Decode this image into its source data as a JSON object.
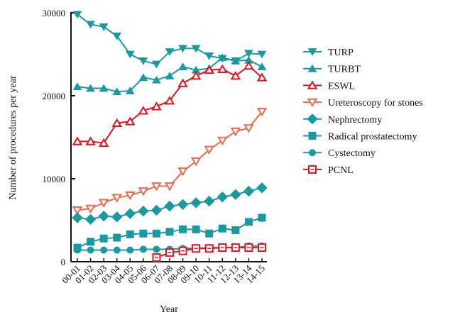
{
  "chart_data": {
    "type": "line",
    "title": "",
    "xlabel": "Year",
    "ylabel": "Number of procedures per year",
    "ylim": [
      0,
      30000
    ],
    "yticks": [
      0,
      10000,
      20000,
      30000
    ],
    "ytick_labels": [
      "0",
      "10000",
      "20000",
      "30000"
    ],
    "grid": false,
    "legend_position": "right",
    "categories": [
      "00-01",
      "01-02",
      "02-03",
      "03-04",
      "04-05",
      "05-06",
      "06-07",
      "07-08",
      "08-09",
      "09-10",
      "10-11",
      "11-12",
      "12-13",
      "13-14",
      "14-15"
    ],
    "series": [
      {
        "name": "TURP",
        "color": "#1a9aa0",
        "marker": "triangle-down-filled",
        "values": [
          29800,
          28600,
          28300,
          27200,
          25000,
          24200,
          23800,
          25300,
          25700,
          25700,
          24800,
          24500,
          24200,
          25100,
          25000
        ]
      },
      {
        "name": "TURBT",
        "color": "#1a9aa0",
        "marker": "triangle-up-filled",
        "values": [
          21100,
          20900,
          20900,
          20500,
          20600,
          22200,
          21900,
          22400,
          23500,
          23100,
          23300,
          24600,
          24200,
          24300,
          23500
        ]
      },
      {
        "name": "ESWL",
        "color": "#e8101c",
        "marker": "triangle-up-open",
        "values": [
          14500,
          14500,
          14300,
          16700,
          16900,
          18200,
          18700,
          19400,
          21500,
          22400,
          23100,
          23200,
          22400,
          23600,
          22200
        ]
      },
      {
        "name": "Ureteroscopy for stones",
        "color": "#f0684a",
        "marker": "triangle-down-open",
        "values": [
          6200,
          6400,
          7100,
          7700,
          8000,
          8500,
          9100,
          9100,
          10900,
          12100,
          13500,
          14600,
          15700,
          16100,
          18100
        ]
      },
      {
        "name": "Nephrectomy",
        "color": "#1a9aa0",
        "marker": "diamond-filled",
        "values": [
          5300,
          5100,
          5500,
          5400,
          5800,
          6100,
          6200,
          6700,
          6900,
          7100,
          7300,
          7800,
          8100,
          8500,
          8900
        ]
      },
      {
        "name": "Radical prostatectomy",
        "color": "#1a9aa0",
        "marker": "square-filled",
        "values": [
          1700,
          2400,
          2800,
          2900,
          3300,
          3400,
          3400,
          3600,
          3900,
          3900,
          3400,
          4000,
          3800,
          4800,
          5300
        ]
      },
      {
        "name": "Cystectomy",
        "color": "#1a9aa0",
        "marker": "circle-filled",
        "values": [
          1400,
          1400,
          1400,
          1400,
          1400,
          1500,
          1500,
          1500,
          1600,
          1600,
          1700,
          1700,
          1700,
          1900,
          1900
        ]
      },
      {
        "name": "PCNL",
        "color": "#e8101c",
        "marker": "square-open",
        "values": [
          null,
          null,
          null,
          null,
          null,
          null,
          500,
          1100,
          1300,
          1600,
          1600,
          1700,
          1700,
          1700,
          1700
        ]
      }
    ]
  }
}
